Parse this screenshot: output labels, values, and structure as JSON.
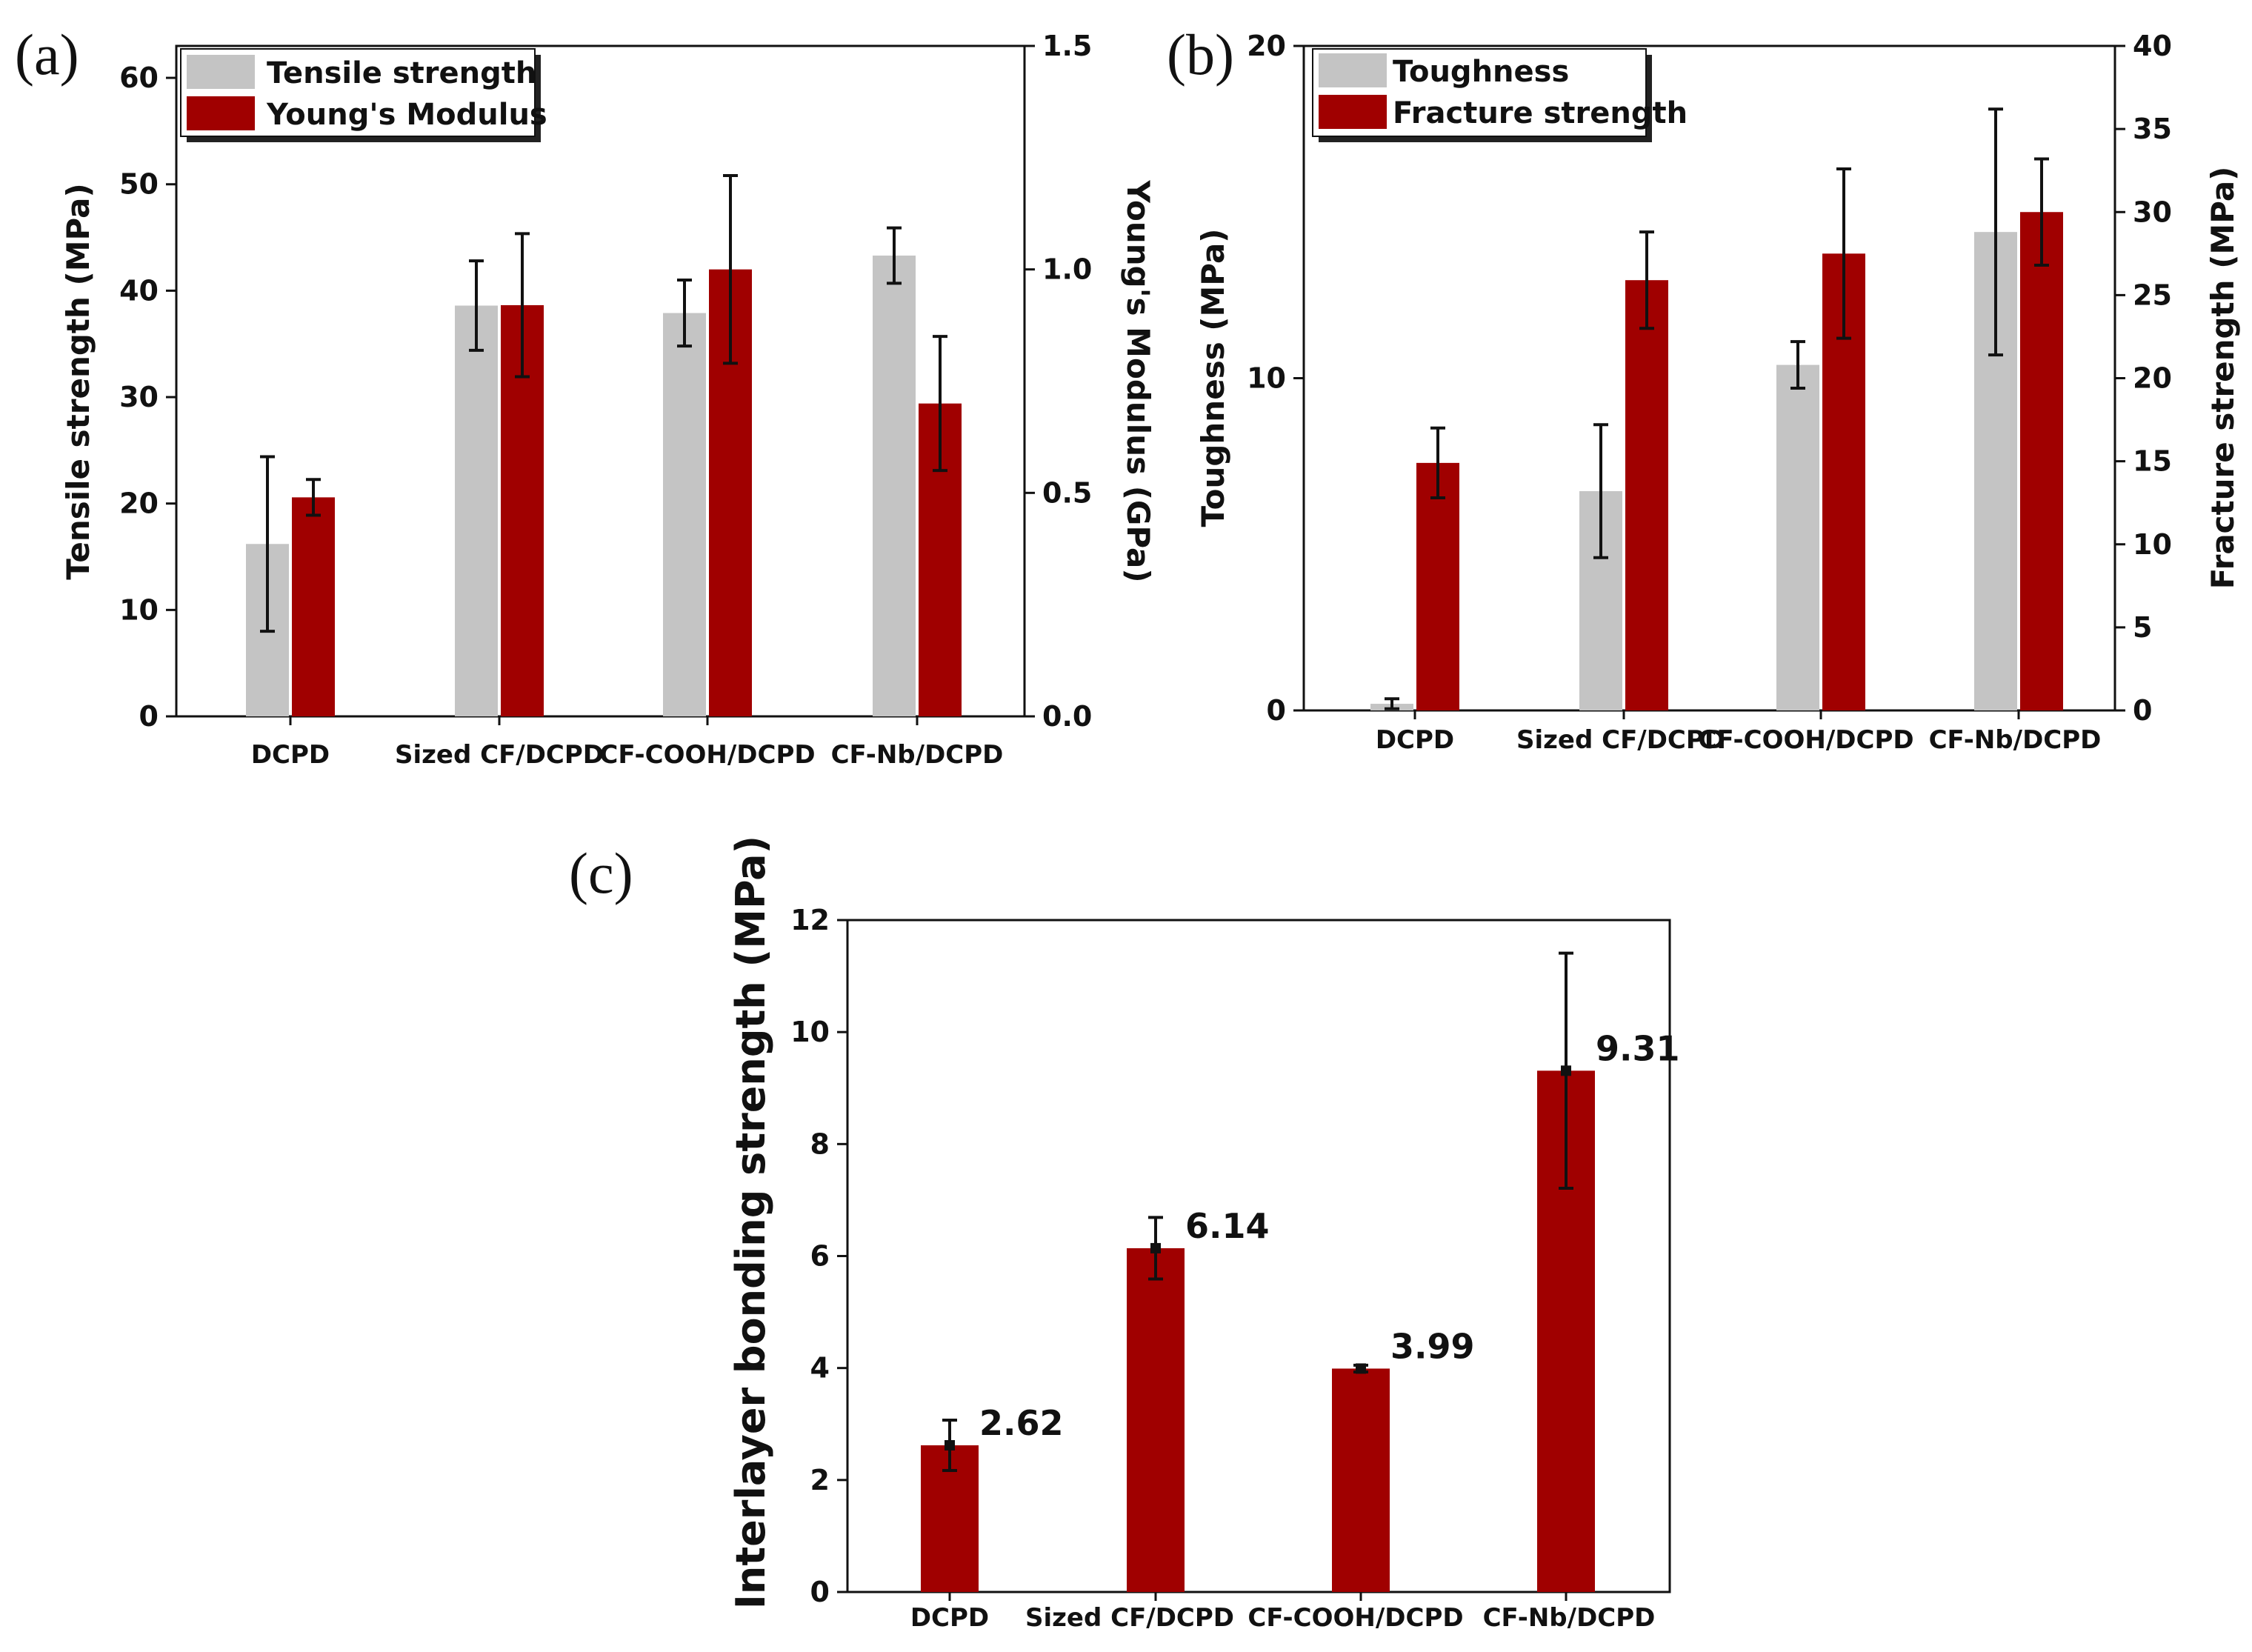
{
  "colors": {
    "gray": "#c4c4c4",
    "red": "#a00000",
    "axis": "#111111"
  },
  "chart_data": [
    {
      "panel": "(a)",
      "type": "bar",
      "categories": [
        "DCPD",
        "Sized CF/DCPD",
        "CF-COOH/DCPD",
        "CF-Nb/DCPD"
      ],
      "ylabel": "Tensile strength (MPa)",
      "ylabel_right": "Young's Modulus (GPa)",
      "ylim": [
        0,
        63
      ],
      "ylim_right": [
        0,
        1.5
      ],
      "yticks": [
        0,
        10,
        20,
        30,
        40,
        50,
        60
      ],
      "yticks_right": [
        "0.0",
        "0.5",
        "1.0",
        "1.5"
      ],
      "series": [
        {
          "name": "Tensile strength",
          "axis": "left",
          "color": "gray",
          "values": [
            16.2,
            38.6,
            37.9,
            43.3
          ],
          "errors": [
            8.2,
            4.2,
            3.1,
            2.6
          ]
        },
        {
          "name": "Young's Modulus",
          "axis": "right",
          "color": "red",
          "values": [
            0.49,
            0.92,
            1.0,
            0.7
          ],
          "errors": [
            0.04,
            0.16,
            0.21,
            0.15
          ]
        }
      ]
    },
    {
      "panel": "(b)",
      "type": "bar",
      "categories": [
        "DCPD",
        "Sized CF/DCPD",
        "CF-COOH/DCPD",
        "CF-Nb/DCPD"
      ],
      "ylabel": "Toughness (MPa)",
      "ylabel_right": "Fracture strength (MPa)",
      "ylim": [
        0,
        20
      ],
      "ylim_right": [
        0,
        40
      ],
      "yticks": [
        0,
        10,
        20
      ],
      "yticks_right": [
        0,
        5,
        10,
        15,
        20,
        25,
        30,
        35,
        40
      ],
      "series": [
        {
          "name": "Toughness",
          "axis": "left",
          "color": "gray",
          "values": [
            0.2,
            6.6,
            10.4,
            14.4
          ],
          "errors": [
            0.15,
            2.0,
            0.7,
            3.7
          ]
        },
        {
          "name": "Fracture strength",
          "axis": "right",
          "color": "red",
          "values": [
            14.9,
            25.9,
            27.5,
            30.0
          ],
          "errors": [
            2.1,
            2.9,
            5.1,
            3.2
          ]
        }
      ]
    },
    {
      "panel": "(c)",
      "type": "bar",
      "categories": [
        "DCPD",
        "Sized CF/DCPD",
        "CF-COOH/DCPD",
        "CF-Nb/DCPD"
      ],
      "ylabel": "Interlayer bonding strength (MPa)",
      "ylim": [
        0,
        12
      ],
      "yticks": [
        0,
        2,
        4,
        6,
        8,
        10,
        12
      ],
      "series": [
        {
          "name": "Interlayer bonding strength",
          "color": "red",
          "values": [
            2.62,
            6.14,
            3.99,
            9.31
          ],
          "value_labels": [
            "2.62",
            "6.14",
            "3.99",
            "9.31"
          ],
          "errors": [
            0.45,
            0.55,
            0.06,
            2.1
          ]
        }
      ]
    }
  ]
}
